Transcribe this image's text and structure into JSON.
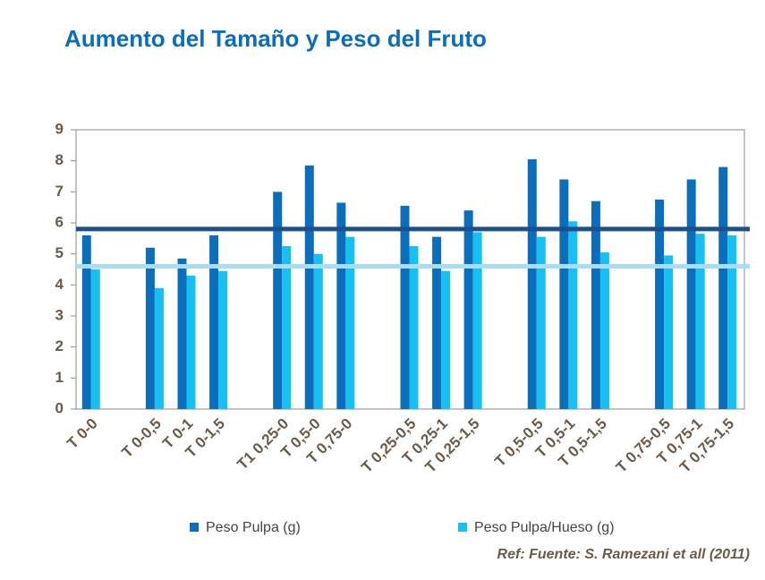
{
  "chart_data": {
    "type": "bar",
    "title": "Aumento del Tamaño y Peso del Fruto",
    "note": "Ref: Fuente: S. Ramezani et all (2011)",
    "categories": [
      "T 0-0",
      null,
      "T 0-0,5",
      "T 0-1",
      "T 0-1,5",
      null,
      "T1  0,25-0",
      "T 0,5-0",
      "T 0,75-0",
      null,
      "T 0,25-0,5",
      "T 0,25-1",
      "T 0,25-1,5",
      null,
      "T 0,5-0,5",
      "T 0,5-1",
      "T 0,5-1,5",
      null,
      "T 0,75-0,5",
      "T 0,75-1",
      "T 0,75-1,5"
    ],
    "series": [
      {
        "name": "Peso Pulpa (g)",
        "color": "#0a6ebd",
        "values": [
          5.6,
          null,
          5.2,
          4.85,
          5.6,
          null,
          7.0,
          7.85,
          6.65,
          null,
          6.55,
          5.55,
          6.4,
          null,
          8.05,
          7.4,
          6.7,
          null,
          6.75,
          7.4,
          7.8
        ]
      },
      {
        "name": "Peso Pulpa/Hueso (g)",
        "color": "#17c0f0",
        "values": [
          4.5,
          null,
          3.9,
          4.3,
          4.45,
          null,
          5.25,
          5.0,
          5.55,
          null,
          5.25,
          4.45,
          5.7,
          null,
          5.55,
          6.05,
          5.05,
          null,
          4.95,
          5.65,
          5.6
        ]
      }
    ],
    "hlines": [
      {
        "value": 5.8,
        "color": "#1c4f8c"
      },
      {
        "value": 4.6,
        "color": "#a9ddf5"
      }
    ],
    "ylim": [
      0,
      9
    ],
    "yticks": [
      0,
      1,
      2,
      3,
      4,
      5,
      6,
      7,
      8,
      9
    ],
    "grid": false
  }
}
